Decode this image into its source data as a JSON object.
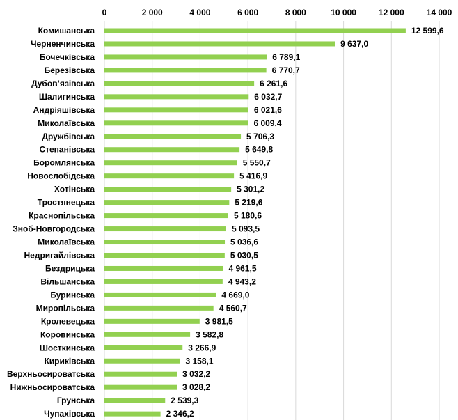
{
  "chart_data": {
    "type": "bar",
    "orientation": "horizontal",
    "categories": [
      "Комишанська",
      "Черненчинська",
      "Бочечківська",
      "Березівська",
      "Дубов’язівська",
      "Шалигинська",
      "Андріяшівська",
      "Миколаївська",
      "Дружбівська",
      "Степанівська",
      "Боромлянська",
      "Новослобідська",
      "Хотінська",
      "Тростянецька",
      "Краснопільська",
      "Зноб-Новгородська",
      "Миколаївська",
      "Недригайлівська",
      "Бездрицька",
      "Вільшанська",
      "Буринська",
      "Миропільська",
      "Кролевецька",
      "Коровинська",
      "Шосткинська",
      "Кириківська",
      "Верхньосироватська",
      "Нижньосироватська",
      "Грунська",
      "Чупахівська"
    ],
    "values": [
      12599.6,
      9637.0,
      6789.1,
      6770.7,
      6261.6,
      6032.7,
      6021.6,
      6009.4,
      5706.3,
      5649.8,
      5550.7,
      5416.9,
      5301.2,
      5219.6,
      5180.6,
      5093.5,
      5036.6,
      5030.5,
      4961.5,
      4943.2,
      4669.0,
      4560.7,
      3981.5,
      3582.8,
      3266.9,
      3158.1,
      3032.2,
      3028.2,
      2539.3,
      2346.2
    ],
    "value_labels": [
      "12 599,6",
      "9 637,0",
      "6 789,1",
      "6 770,7",
      "6 261,6",
      "6 032,7",
      "6 021,6",
      "6 009,4",
      "5 706,3",
      "5 649,8",
      "5 550,7",
      "5 416,9",
      "5 301,2",
      "5 219,6",
      "5 180,6",
      "5 093,5",
      "5 036,6",
      "5 030,5",
      "4 961,5",
      "4 943,2",
      "4 669,0",
      "4 560,7",
      "3 981,5",
      "3 582,8",
      "3 266,9",
      "3 158,1",
      "3 032,2",
      "3 028,2",
      "2 539,3",
      "2 346,2"
    ],
    "xlim": [
      0,
      14000
    ],
    "x_ticks": [
      0,
      2000,
      4000,
      6000,
      8000,
      10000,
      12000,
      14000
    ],
    "x_tick_labels": [
      "0",
      "2 000",
      "4 000",
      "6 000",
      "8 000",
      "10 000",
      "12 000",
      "14 000"
    ],
    "axis_position": "top",
    "grid": true,
    "bar_color": "#92d050",
    "grid_color": "#d9d9d9",
    "title": "",
    "xlabel": "",
    "ylabel": ""
  }
}
